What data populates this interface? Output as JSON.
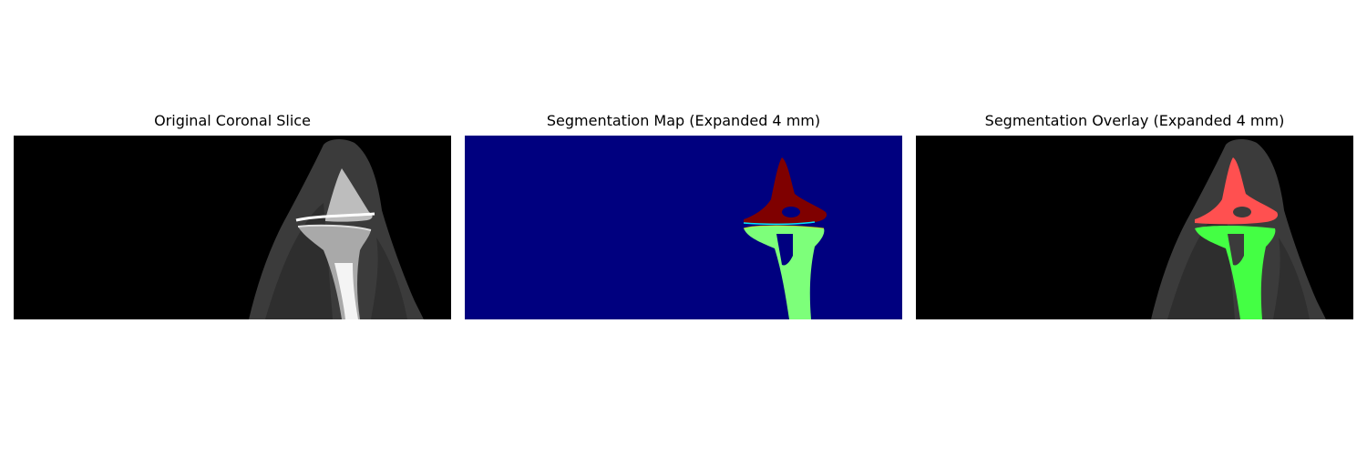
{
  "figure": {
    "panels": [
      {
        "title": "Original Coronal Slice"
      },
      {
        "title": "Segmentation Map (Expanded 4 mm)"
      },
      {
        "title": "Segmentation Overlay (Expanded 4 mm)"
      }
    ]
  },
  "colors": {
    "ct_background": "#000000",
    "soft_tissue": "#3a3a3a",
    "bone": "#d8d8d8",
    "map_background": "#00007f",
    "map_upper_bone": "#7f0000",
    "map_lower_bone": "#7dff7a",
    "overlay_upper_bone": "#ff5050",
    "overlay_lower_bone": "#44ff44"
  }
}
